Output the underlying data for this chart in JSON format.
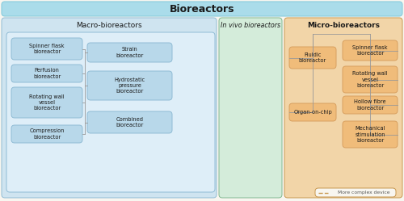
{
  "title": "Bioreactors",
  "title_bg": "#aadcea",
  "macro_bg": "#cfe4f0",
  "macro_label": "Macro-bioreactors",
  "invivo_bg": "#d4ecda",
  "invivo_label": "In vivo bioreactors",
  "micro_bg": "#f2d5a8",
  "micro_label": "Micro-bioreactors",
  "macro_box_bg": "#b8d8ea",
  "macro_box_edge": "#90bcd5",
  "micro_box_bg": "#f0bc7a",
  "micro_box_edge": "#d8a060",
  "macro_inner_bg": "#deeef8",
  "macro_inner_edge": "#90bcd5",
  "macro_left_items": [
    "Spinner flask\nbioreactor",
    "Perfusion\nbioreactor",
    "Rotating wall\nvessel\nbioreactor",
    "Compression\nbioreactor"
  ],
  "macro_right_items": [
    "Strain\nbioreactor",
    "Hydrostatic\npressure\nbioreactor",
    "Combined\nbioreactor"
  ],
  "micro_left_items": [
    "Fluidic\nbioreactor",
    "Organ-on-chip"
  ],
  "micro_right_items": [
    "Spinner flask\nbioreactor",
    "Rotating wall\nvessel\nbioreactor",
    "Hollow fibre\nbioreactor",
    "Mechanical\nstimulation\nbioreactor"
  ],
  "legend_text": "More complex device",
  "fig_bg": "#f8f6f0",
  "line_color": "#999999"
}
